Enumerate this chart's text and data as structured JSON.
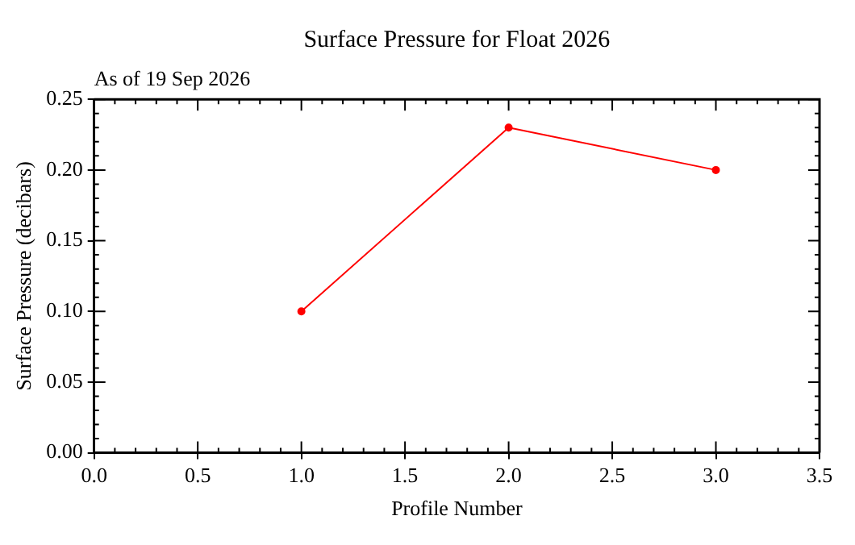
{
  "chart_data": {
    "type": "line",
    "title": "Surface Pressure for Float 2026",
    "subtitle": "As of 19 Sep 2026",
    "xlabel": "Profile Number",
    "ylabel": "Surface Pressure (decibars)",
    "x": [
      1,
      2,
      3
    ],
    "series": [
      {
        "color": "#ff0000",
        "values": [
          0.1,
          0.23,
          0.2
        ]
      }
    ],
    "marker": "circle",
    "line_style": "solid",
    "grid": false,
    "legend": false,
    "xlim": [
      0,
      3.5
    ],
    "xticks": [
      {
        "value": 0,
        "label": "0.0"
      },
      {
        "value": 0.5,
        "label": "0.5"
      },
      {
        "value": 1,
        "label": "1.0"
      },
      {
        "value": 1.5,
        "label": "1.5"
      },
      {
        "value": 2,
        "label": "2.0"
      },
      {
        "value": 2.5,
        "label": "2.5"
      },
      {
        "value": 3,
        "label": "3.0"
      },
      {
        "value": 3.5,
        "label": "3.5"
      }
    ],
    "ylim": [
      0,
      0.25
    ],
    "yticks": [
      {
        "value": 0,
        "label": "0.00"
      },
      {
        "value": 0.05,
        "label": "0.05"
      },
      {
        "value": 0.1,
        "label": "0.10"
      },
      {
        "value": 0.15,
        "label": "0.15"
      },
      {
        "value": 0.2,
        "label": "0.20"
      },
      {
        "value": 0.25,
        "label": "0.25"
      }
    ]
  }
}
